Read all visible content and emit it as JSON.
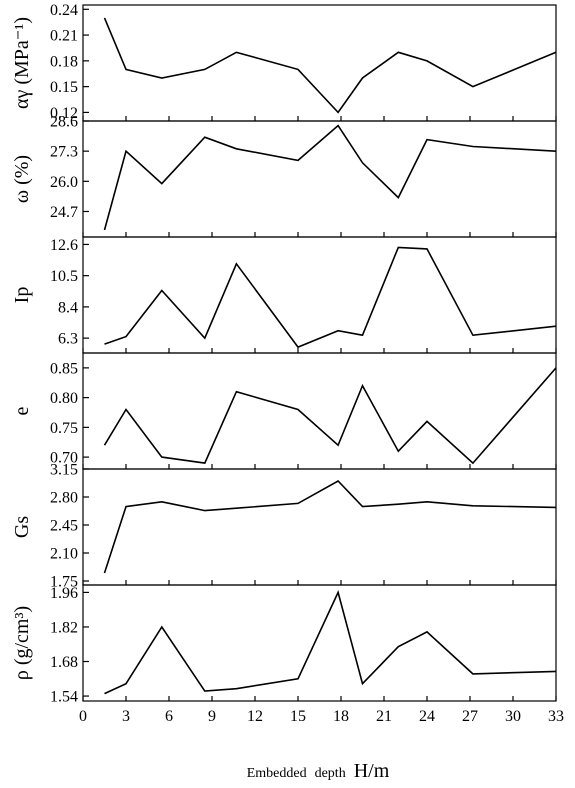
{
  "chart_data": {
    "type": "line",
    "xlabel": {
      "prefix": "Embedded",
      "middle": "depth",
      "suffix": "H/m"
    },
    "x_ticks": [
      0,
      3,
      6,
      9,
      12,
      15,
      18,
      21,
      24,
      27,
      30,
      33
    ],
    "xlim": [
      0,
      33
    ],
    "x": [
      1.5,
      3,
      5.5,
      8.5,
      10.7,
      15,
      17.8,
      19.5,
      22,
      24,
      27.2,
      33
    ],
    "panels": [
      {
        "id": "alpha",
        "ylabel": "αγ (MPa⁻¹)",
        "ylim": [
          0.11,
          0.245
        ],
        "y_ticks": [
          "0.12",
          "0.15",
          "0.18",
          "0.21",
          "0.24"
        ],
        "values": [
          0.23,
          0.17,
          0.16,
          0.17,
          0.19,
          0.17,
          0.12,
          0.16,
          0.19,
          0.18,
          0.15,
          0.19
        ]
      },
      {
        "id": "omega",
        "ylabel": "ω (%)",
        "ylim": [
          23.6,
          28.6
        ],
        "y_ticks": [
          "24.7",
          "26.0",
          "27.3",
          "28.6"
        ],
        "values": [
          23.9,
          27.3,
          25.9,
          27.9,
          27.4,
          26.9,
          28.4,
          26.8,
          25.3,
          27.8,
          27.5,
          27.3
        ]
      },
      {
        "id": "ip",
        "ylabel": "Ip",
        "ylim": [
          5.3,
          13.1
        ],
        "y_ticks": [
          "6.3",
          "8.4",
          "10.5",
          "12.6"
        ],
        "values": [
          5.9,
          6.4,
          9.5,
          6.3,
          11.3,
          5.7,
          6.8,
          6.5,
          12.4,
          12.3,
          6.5,
          7.1
        ]
      },
      {
        "id": "e",
        "ylabel": "e",
        "ylim": [
          0.68,
          0.875
        ],
        "y_ticks": [
          "0.70",
          "0.75",
          "0.80",
          "0.85"
        ],
        "values": [
          0.72,
          0.78,
          0.7,
          0.69,
          0.81,
          0.78,
          0.72,
          0.82,
          0.71,
          0.76,
          0.69,
          0.85
        ]
      },
      {
        "id": "gs",
        "ylabel": "Gs",
        "ylim": [
          1.7,
          3.15
        ],
        "y_ticks": [
          "1.75",
          "2.10",
          "2.45",
          "2.80",
          "3.15"
        ],
        "values": [
          1.85,
          2.68,
          2.74,
          2.63,
          2.66,
          2.72,
          3.0,
          2.68,
          2.71,
          2.74,
          2.69,
          2.67
        ]
      },
      {
        "id": "rho",
        "ylabel": "ρ (g/cm³)",
        "ylim": [
          1.52,
          1.99
        ],
        "y_ticks": [
          "1.54",
          "1.68",
          "1.82",
          "1.96"
        ],
        "values": [
          1.55,
          1.59,
          1.82,
          1.56,
          1.57,
          1.61,
          1.96,
          1.59,
          1.74,
          1.8,
          1.63,
          1.64
        ]
      }
    ]
  }
}
